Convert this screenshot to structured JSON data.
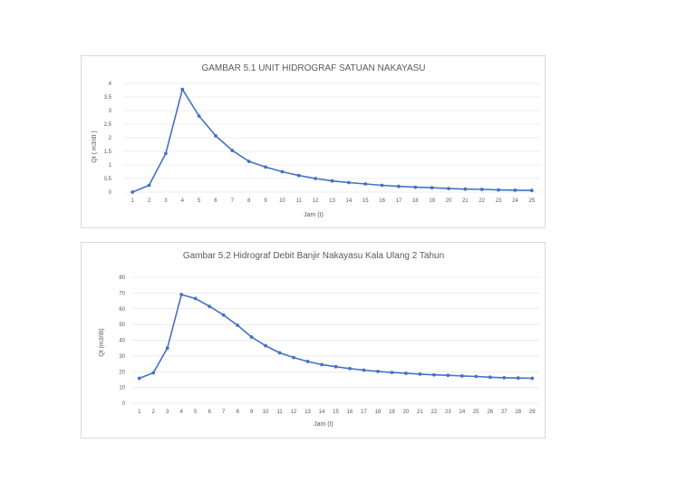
{
  "chart_data": [
    {
      "type": "line",
      "title": "GAMBAR 5.1 UNIT HIDROGRAF SATUAN NAKAYASU",
      "xlabel": "Jam (t)",
      "ylabel": "Qt ( m3/dt )",
      "ylim": [
        0,
        4
      ],
      "yticks": [
        "0",
        "0,5",
        "1",
        "1,5",
        "2",
        "2,5",
        "3",
        "3,5",
        "4"
      ],
      "ytick_values": [
        0,
        0.5,
        1,
        1.5,
        2,
        2.5,
        3,
        3.5,
        4
      ],
      "x": [
        1,
        2,
        3,
        4,
        5,
        6,
        7,
        8,
        9,
        10,
        11,
        12,
        13,
        14,
        15,
        16,
        17,
        18,
        19,
        20,
        21,
        22,
        23,
        24,
        25
      ],
      "grid": true,
      "legend": "none",
      "color": "#4472c4",
      "series": [
        {
          "values": [
            0,
            0.25,
            1.42,
            3.78,
            2.8,
            2.07,
            1.53,
            1.13,
            0.92,
            0.75,
            0.61,
            0.5,
            0.41,
            0.35,
            0.3,
            0.25,
            0.21,
            0.18,
            0.16,
            0.13,
            0.11,
            0.1,
            0.08,
            0.07,
            0.06
          ]
        }
      ]
    },
    {
      "type": "line",
      "title": "Gambar 5.2 Hidrograf Debit Banjir Nakayasu Kala Ulang 2 Tahun",
      "xlabel": "Jam (t)",
      "ylabel": "Qt (m3/dt)",
      "ylim": [
        0,
        80
      ],
      "yticks": [
        "0",
        "10",
        "20",
        "30",
        "40",
        "50",
        "60",
        "70",
        "80"
      ],
      "ytick_values": [
        0,
        10,
        20,
        30,
        40,
        50,
        60,
        70,
        80
      ],
      "x": [
        1,
        2,
        3,
        4,
        5,
        6,
        7,
        8,
        9,
        10,
        11,
        12,
        13,
        14,
        15,
        16,
        17,
        18,
        19,
        20,
        21,
        22,
        23,
        24,
        25,
        26,
        27,
        28,
        29
      ],
      "grid": true,
      "legend": "none",
      "color": "#4472c4",
      "series": [
        {
          "values": [
            15.8,
            19.3,
            35,
            69,
            66.5,
            61.5,
            56,
            49.5,
            42,
            36.5,
            32,
            29,
            26.5,
            24.5,
            23.2,
            22,
            21,
            20.2,
            19.5,
            19,
            18.5,
            18,
            17.7,
            17.3,
            17,
            16.5,
            16.2,
            16,
            15.8
          ]
        }
      ]
    }
  ]
}
